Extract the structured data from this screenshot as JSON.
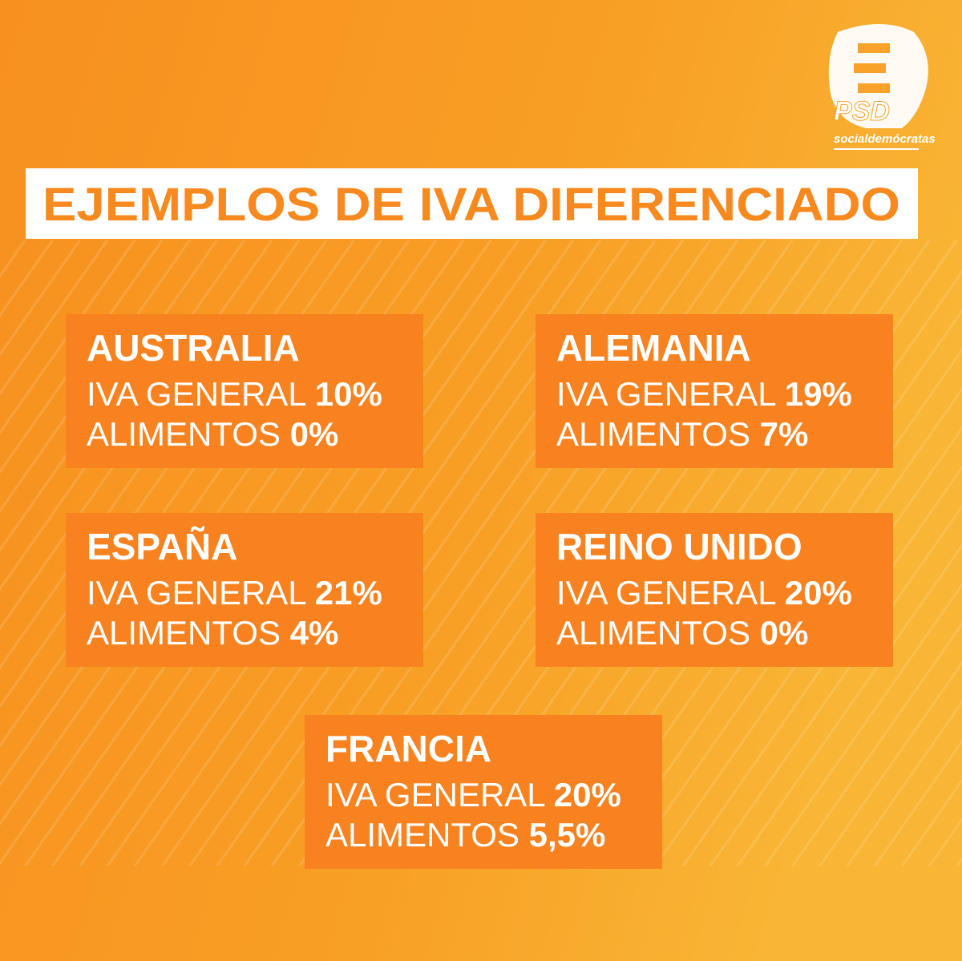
{
  "header": {
    "title": "EJEMPLOS DE IVA DIFERENCIADO"
  },
  "logo": {
    "acronym": "PSD",
    "tagline": "socialdemócratas"
  },
  "cards": [
    {
      "name": "AUSTRALIA",
      "rows": [
        {
          "label": "IVA GENERAL",
          "value": "10%"
        },
        {
          "label": "ALIMENTOS",
          "value": "0%"
        }
      ]
    },
    {
      "name": "ALEMANIA",
      "rows": [
        {
          "label": "IVA GENERAL",
          "value": "19%"
        },
        {
          "label": "ALIMENTOS",
          "value": "7%"
        }
      ]
    },
    {
      "name": "ESPAÑA",
      "rows": [
        {
          "label": "IVA GENERAL",
          "value": "21%"
        },
        {
          "label": "ALIMENTOS",
          "value": "4%"
        }
      ]
    },
    {
      "name": "REINO UNIDO",
      "rows": [
        {
          "label": "IVA GENERAL",
          "value": "20%"
        },
        {
          "label": "ALIMENTOS",
          "value": "0%"
        }
      ]
    },
    {
      "name": "FRANCIA",
      "rows": [
        {
          "label": "IVA GENERAL",
          "value": "20%"
        },
        {
          "label": "ALIMENTOS",
          "value": "5,5%"
        }
      ]
    }
  ]
}
